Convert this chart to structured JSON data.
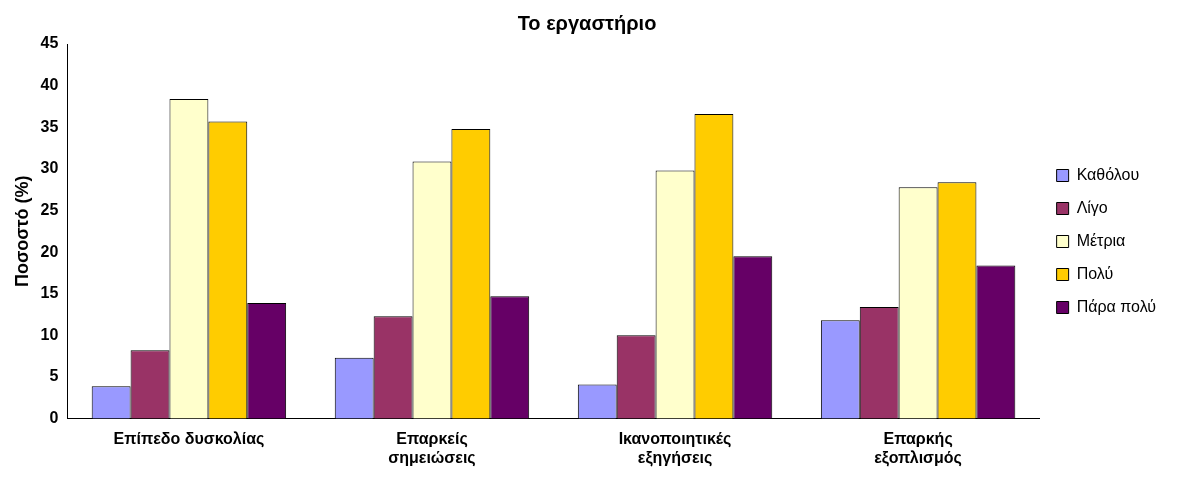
{
  "chart_data": {
    "type": "bar",
    "title": "Το εργαστήριο",
    "ylabel": "Ποσοστό (%)",
    "categories": [
      "Επίπεδο δυσκολίας",
      "Επαρκείς σημειώσεις",
      "Ικανοποιητικές εξηγήσεις",
      "Επαρκής εξοπλισμός"
    ],
    "series": [
      {
        "name": "Καθόλου",
        "color": "#9999ff",
        "values": [
          3.9,
          7.3,
          4.1,
          11.8
        ]
      },
      {
        "name": "Λίγο",
        "color": "#993366",
        "values": [
          8.2,
          12.3,
          10,
          13.4
        ]
      },
      {
        "name": "Μέτρια",
        "color": "#ffffcc",
        "values": [
          38.4,
          30.9,
          29.8,
          27.8
        ]
      },
      {
        "name": "Πολύ",
        "color": "#ffcc00",
        "values": [
          35.7,
          34.8,
          36.6,
          28.4
        ]
      },
      {
        "name": "Πάρα πολύ",
        "color": "#660066",
        "values": [
          13.9,
          14.7,
          19.5,
          18.4
        ]
      }
    ],
    "ylim": [
      0,
      45
    ],
    "yticks": [
      0,
      5,
      10,
      15,
      20,
      25,
      30,
      35,
      40,
      45
    ],
    "grid": false,
    "legend": "right"
  }
}
